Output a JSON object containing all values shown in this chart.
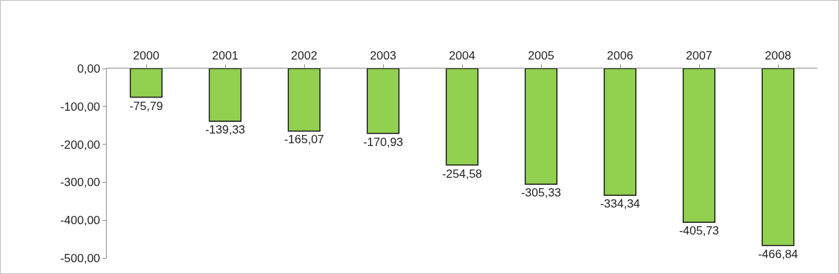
{
  "chart_data": {
    "type": "bar",
    "categories": [
      "2000",
      "2001",
      "2002",
      "2003",
      "2004",
      "2005",
      "2006",
      "2007",
      "2008"
    ],
    "values": [
      -75.79,
      -139.33,
      -165.07,
      -170.93,
      -254.58,
      -305.33,
      -334.34,
      -405.73,
      -466.84
    ],
    "value_labels": [
      "-75,79",
      "-139,33",
      "-165,07",
      "-170,93",
      "-254,58",
      "-305,33",
      "-334,34",
      "-405,73",
      "-466,84"
    ],
    "color": "#92d050",
    "ylim": [
      -500,
      0
    ],
    "yticks": [
      {
        "value": 0,
        "label": "0,00"
      },
      {
        "value": -100,
        "label": "-100,00"
      },
      {
        "value": -200,
        "label": "-200,00"
      },
      {
        "value": -300,
        "label": "-300,00"
      },
      {
        "value": -400,
        "label": "-400,00"
      },
      {
        "value": -500,
        "label": "-500,00"
      }
    ],
    "grid": false
  }
}
